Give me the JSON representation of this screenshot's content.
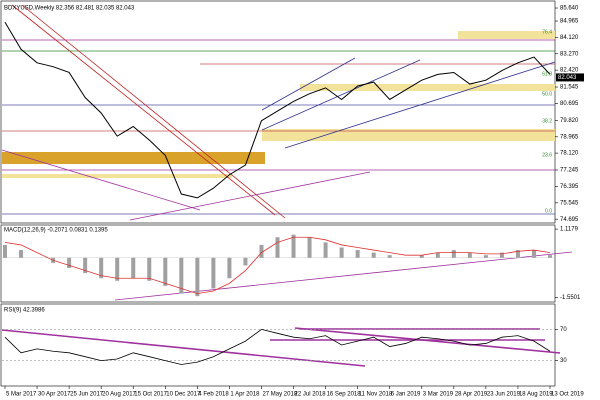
{
  "chart_data": [
    {
      "type": "line",
      "title": "BDXYUSD,Weekly 82.356 82.481 82.035 82.043",
      "color": "#000000",
      "categories": [
        "5 Mar 2017",
        null,
        "30 Apr 2017",
        null,
        "25 Jun 2017",
        null,
        "20 Aug 2017",
        null,
        "15 Oct 2017",
        null,
        "10 Dec 2017",
        null,
        "4 Feb 2018",
        null,
        "1 Apr 2018",
        null,
        "27 May 2018",
        null,
        "22 Jul 2018",
        null,
        "16 Sep 2018",
        null,
        "11 Nov 2018",
        null,
        "6 Jan 2019",
        null,
        "3 Mar 2019",
        null,
        "28 Apr 2019",
        null,
        "23 Jun 2019",
        null,
        "18 Aug 2019",
        null,
        "13 Oct 2019"
      ],
      "values": [
        84.9,
        83.5,
        82.8,
        82.6,
        82.3,
        81.0,
        80.2,
        79.0,
        79.5,
        78.8,
        78.0,
        76.0,
        75.8,
        76.3,
        77.0,
        77.5,
        79.8,
        80.3,
        80.8,
        81.2,
        81.5,
        80.9,
        81.6,
        81.8,
        80.9,
        81.4,
        81.9,
        82.2,
        82.3,
        81.7,
        81.9,
        82.4,
        82.8,
        83.1,
        82.2
      ],
      "last_price": {
        "value": 82.043,
        "label": "82.043"
      },
      "ylim": [
        74.55,
        85.9
      ],
      "yticks": [
        {
          "value": 85.64,
          "label": "85.640"
        },
        84.965,
        {
          "value": 84.12,
          "label": "84.120"
        },
        {
          "value": 83.27,
          "label": "83.270"
        },
        {
          "value": 82.42,
          "label": "82.420"
        },
        81.545,
        80.695,
        {
          "value": 79.82,
          "label": "79.820"
        },
        78.965,
        {
          "value": 78.12,
          "label": "78.120"
        },
        77.245,
        76.395,
        75.545,
        74.695
      ],
      "annotations": [
        "76.4",
        "61.8",
        "50.0",
        "38.2",
        "23.6",
        "0.0"
      ]
    },
    {
      "type": "macd",
      "title": "MACD(12,26,9) -0.2071 0.0831 0.1395",
      "color": "#a0a0a0",
      "signal_color": "#e03030",
      "values": [
        0.5,
        0.3,
        0.0,
        -0.2,
        -0.4,
        -0.6,
        -0.8,
        -0.9,
        -0.8,
        -0.9,
        -1.1,
        -1.4,
        -1.5,
        -1.2,
        -0.8,
        -0.3,
        0.5,
        0.8,
        0.9,
        0.8,
        0.6,
        0.4,
        0.3,
        0.2,
        0.1,
        0.0,
        0.1,
        0.2,
        0.3,
        0.2,
        0.1,
        0.2,
        0.3,
        0.3,
        0.1
      ],
      "signal": [
        0.6,
        0.5,
        0.2,
        -0.1,
        -0.3,
        -0.5,
        -0.7,
        -0.8,
        -0.8,
        -0.8,
        -1.0,
        -1.2,
        -1.4,
        -1.3,
        -1.0,
        -0.5,
        0.2,
        0.6,
        0.8,
        0.8,
        0.7,
        0.5,
        0.4,
        0.3,
        0.2,
        0.1,
        0.1,
        0.2,
        0.2,
        0.2,
        0.15,
        0.15,
        0.25,
        0.3,
        0.2
      ],
      "ylim": [
        -1.65,
        1.2
      ],
      "yticks": [
        1.1179,
        -1.5501
      ]
    },
    {
      "type": "rsi",
      "title": "RSI(9) 42.3986",
      "color": "#000000",
      "values": [
        60,
        40,
        45,
        42,
        40,
        35,
        30,
        32,
        40,
        35,
        30,
        25,
        28,
        35,
        45,
        55,
        70,
        65,
        60,
        58,
        62,
        50,
        55,
        60,
        48,
        52,
        60,
        58,
        55,
        50,
        52,
        60,
        62,
        55,
        42
      ],
      "ylim": [
        0,
        100
      ],
      "yticks": [
        70,
        30
      ]
    }
  ]
}
